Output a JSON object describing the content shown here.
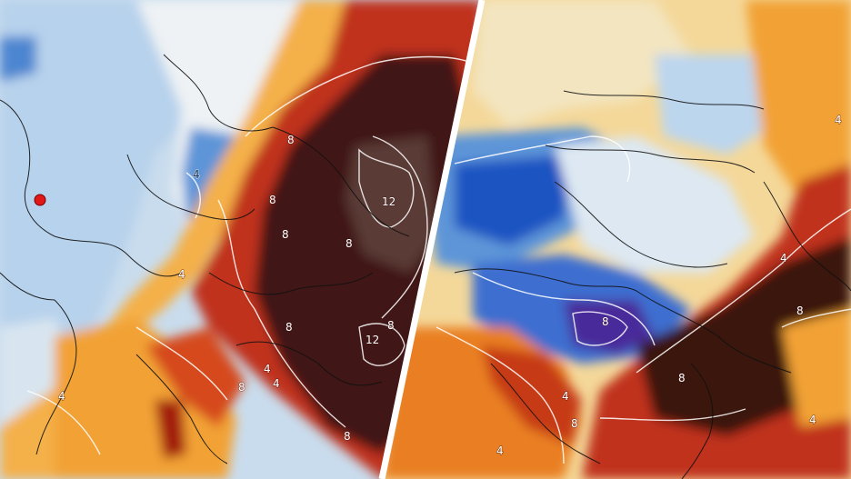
{
  "panels": [
    {
      "id": "left",
      "labels": [
        "8",
        "8",
        "8",
        "8",
        "8",
        "12",
        "12",
        "8",
        "8",
        "4",
        "4",
        "4",
        "4",
        "8",
        "4"
      ]
    },
    {
      "id": "right",
      "labels": [
        "8",
        "4",
        "8",
        "4",
        "8",
        "4",
        "8",
        "4",
        "4"
      ]
    }
  ],
  "colors": {
    "cold_deep": "#1f4fc0",
    "cold": "#5d95d8",
    "cool": "#b8d4ec",
    "neutral": "#e8edf2",
    "warm_light": "#f6d890",
    "warm": "#f0a030",
    "hot": "#d8541c",
    "very_hot": "#a0180f",
    "extreme": "#3a1410",
    "purple": "#4a2a9a",
    "divider": "#ffffff",
    "marker": "#e01818"
  },
  "icons": {
    "location_marker": "red-dot-icon"
  }
}
